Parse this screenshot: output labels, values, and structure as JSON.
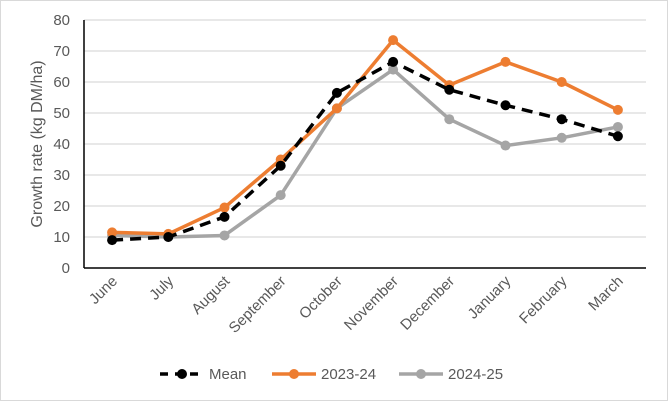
{
  "chart_data": {
    "type": "line",
    "title": "",
    "xlabel": "",
    "ylabel": "Growth rate (kg DM/ha)",
    "ylim": [
      0,
      80
    ],
    "yticks": [
      0,
      10,
      20,
      30,
      40,
      50,
      60,
      70,
      80
    ],
    "grid": true,
    "legend_position": "bottom",
    "categories": [
      "June",
      "July",
      "August",
      "September",
      "October",
      "November",
      "December",
      "January",
      "February",
      "March"
    ],
    "series": [
      {
        "name": "Mean",
        "color": "#000000",
        "dashed": true,
        "values": [
          9,
          10,
          16.5,
          33,
          56.5,
          66.5,
          57.5,
          52.5,
          48,
          42.5
        ]
      },
      {
        "name": "2023-24",
        "color": "#ED7D31",
        "dashed": false,
        "values": [
          11.5,
          11,
          19.5,
          35,
          51.5,
          73.5,
          59,
          66.5,
          60,
          51
        ]
      },
      {
        "name": "2024-25",
        "color": "#A5A5A5",
        "dashed": false,
        "values": [
          10.5,
          10,
          10.5,
          23.5,
          51.5,
          64,
          48,
          39.5,
          42,
          45.5
        ]
      }
    ]
  }
}
